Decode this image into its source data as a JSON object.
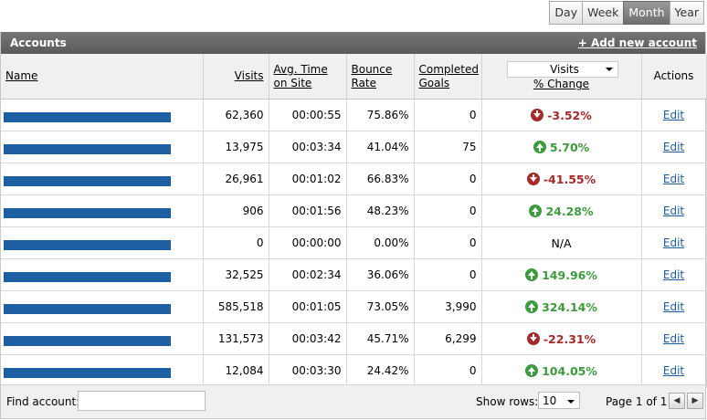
{
  "range": {
    "day": "Day",
    "week": "Week",
    "month": "Month",
    "year": "Year"
  },
  "panel": {
    "title": "Accounts",
    "add_label": "+ Add new account"
  },
  "columns": {
    "name": "Name",
    "visits": "Visits",
    "avg_time": "Avg. Time on Site",
    "bounce": "Bounce Rate",
    "goals": "Completed Goals",
    "metric_select": "Visits",
    "pct_change": "% Change",
    "actions": "Actions"
  },
  "rows": [
    {
      "visits": "62,360",
      "time": "00:00:55",
      "bounce": "75.86%",
      "goals": "0",
      "change": "-3.52%",
      "dir": "down",
      "action": "Edit"
    },
    {
      "visits": "13,975",
      "time": "00:03:34",
      "bounce": "41.04%",
      "goals": "75",
      "change": "5.70%",
      "dir": "up",
      "action": "Edit"
    },
    {
      "visits": "26,961",
      "time": "00:01:02",
      "bounce": "66.83%",
      "goals": "0",
      "change": "-41.55%",
      "dir": "down",
      "action": "Edit"
    },
    {
      "visits": "906",
      "time": "00:01:56",
      "bounce": "48.23%",
      "goals": "0",
      "change": "24.28%",
      "dir": "up",
      "action": "Edit"
    },
    {
      "visits": "0",
      "time": "00:00:00",
      "bounce": "0.00%",
      "goals": "0",
      "change": "N/A",
      "dir": "none",
      "action": "Edit"
    },
    {
      "visits": "32,525",
      "time": "00:02:34",
      "bounce": "36.06%",
      "goals": "0",
      "change": "149.96%",
      "dir": "up",
      "action": "Edit"
    },
    {
      "visits": "585,518",
      "time": "00:01:05",
      "bounce": "73.05%",
      "goals": "3,990",
      "change": "324.14%",
      "dir": "up",
      "action": "Edit"
    },
    {
      "visits": "131,573",
      "time": "00:03:42",
      "bounce": "45.71%",
      "goals": "6,299",
      "change": "-22.31%",
      "dir": "down",
      "action": "Edit"
    },
    {
      "visits": "12,084",
      "time": "00:03:30",
      "bounce": "24.42%",
      "goals": "0",
      "change": "104.05%",
      "dir": "up",
      "action": "Edit"
    }
  ],
  "footer": {
    "find_label": "Find account:",
    "find_value": "",
    "show_rows_label": "Show rows:",
    "rows_value": "10",
    "page_label": "Page 1 of 1"
  },
  "colors": {
    "bar": "#1d5fa0",
    "up": "#3d9a3d",
    "down": "#a52a2a"
  }
}
